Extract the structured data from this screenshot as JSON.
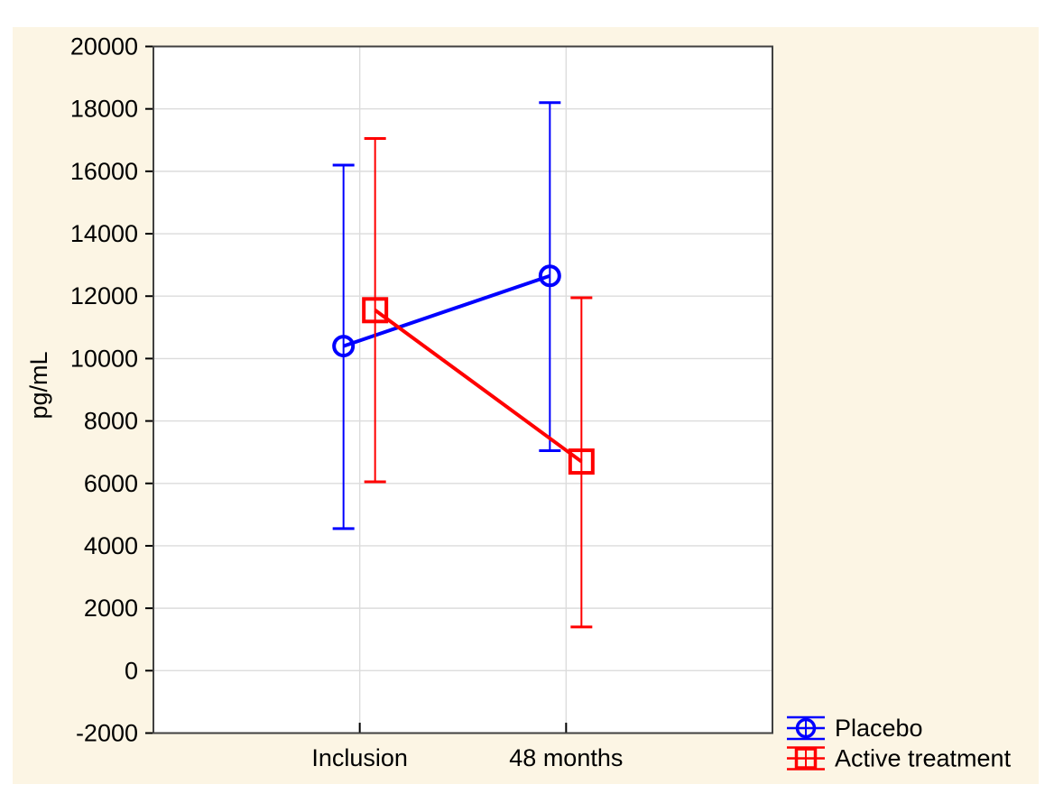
{
  "chart_data": {
    "type": "line",
    "title": "",
    "ylabel": "pg/mL",
    "xlabel": "",
    "categories": [
      "Inclusion",
      "48 months"
    ],
    "ylim": [
      -2000,
      20000
    ],
    "ytick_step": 2000,
    "ytick_labels": [
      "-2000",
      "0",
      "2000",
      "4000",
      "6000",
      "8000",
      "10000",
      "12000",
      "14000",
      "16000",
      "18000",
      "20000"
    ],
    "grid": "horizontal gridline at every y tick; vertical gridline at each category",
    "legend_position": "bottom-right",
    "error_bars": true,
    "series": [
      {
        "name": "Placebo",
        "color": "#0000ff",
        "marker": "circle",
        "means": [
          10400,
          12650
        ],
        "whisker_low": [
          4550,
          7050
        ],
        "whisker_high": [
          16200,
          18200
        ]
      },
      {
        "name": "Active treatment",
        "color": "#ff0000",
        "marker": "square",
        "means": [
          11550,
          6700
        ],
        "whisker_low": [
          6050,
          1400
        ],
        "whisker_high": [
          17050,
          11950
        ]
      }
    ]
  },
  "colors": {
    "canvas_background": "#fcf5e4",
    "plot_background": "#ffffff",
    "gridline": "#dcdcdc",
    "axis_frame": "#404040",
    "tick": "#000000",
    "text": "#000000"
  }
}
